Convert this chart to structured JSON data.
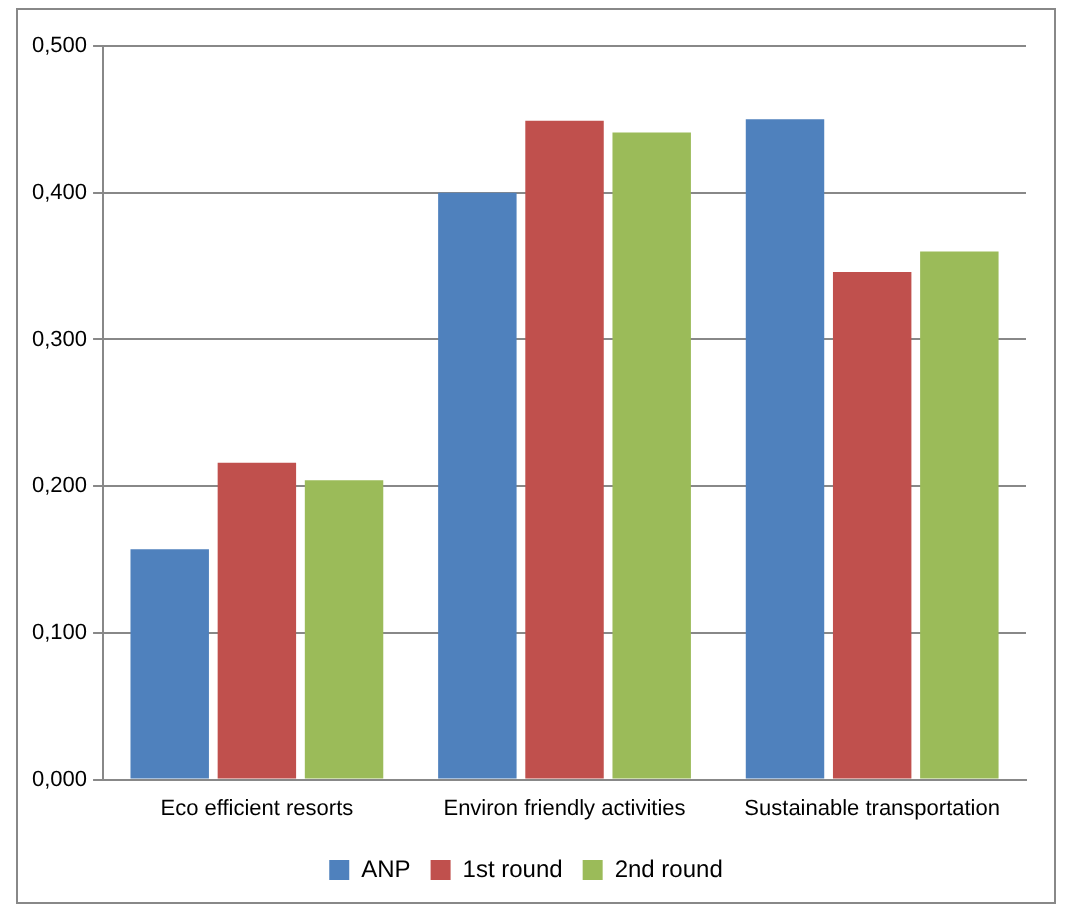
{
  "chart_data": {
    "type": "bar",
    "categories": [
      "Eco efficient resorts",
      "Environ friendly activities",
      "Sustainable transportation"
    ],
    "series": [
      {
        "name": "ANP",
        "color": "#4f81bd",
        "values": [
          0.157,
          0.4,
          0.45
        ]
      },
      {
        "name": "1st round",
        "color": "#c0504d",
        "values": [
          0.216,
          0.449,
          0.346
        ]
      },
      {
        "name": "2nd round",
        "color": "#9bbb59",
        "values": [
          0.204,
          0.441,
          0.36
        ]
      }
    ],
    "ylim": [
      0,
      0.5
    ],
    "yticks": [
      {
        "value": 0,
        "label": "0,000"
      },
      {
        "value": 0.1,
        "label": "0,100"
      },
      {
        "value": 0.2,
        "label": "0,200"
      },
      {
        "value": 0.3,
        "label": "0,300"
      },
      {
        "value": 0.4,
        "label": "0,400"
      },
      {
        "value": 0.5,
        "label": "0,500"
      }
    ],
    "grid": "y",
    "legend": "bottom"
  }
}
